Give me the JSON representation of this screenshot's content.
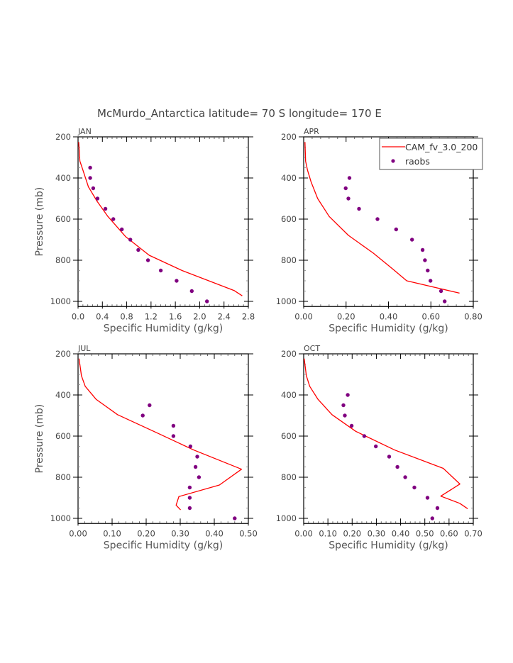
{
  "chart_data": {
    "title": "McMurdo_Antarctica  latitude= 70 S longitude= 170 E",
    "legend": {
      "entries": [
        {
          "label": "CAM_fv_3.0_200",
          "style": "line",
          "color": "#ff0000"
        },
        {
          "label": "raobs",
          "style": "marker",
          "color": "#800080"
        }
      ],
      "placement": "top-right of APR panel"
    },
    "colors": {
      "model": "#ff0000",
      "obs": "#800080",
      "axis": "#000000"
    },
    "panels": [
      {
        "type": "line",
        "label": "JAN",
        "xlabel": "Specific Humidity (g/kg)",
        "ylabel": "Pressure (mb)",
        "xlim": [
          0,
          2.8
        ],
        "ylim": [
          200,
          1025
        ],
        "y_inverted": false,
        "xticks": [
          "0.0",
          "0.4",
          "0.8",
          "1.2",
          "1.6",
          "2.0",
          "2.4",
          "2.8"
        ],
        "xtick_values": [
          0,
          0.4,
          0.8,
          1.2,
          1.6,
          2.0,
          2.4,
          2.8
        ],
        "yticks": [
          "200",
          "400",
          "600",
          "800",
          "1000"
        ],
        "ytick_values": [
          200,
          400,
          600,
          800,
          1000
        ],
        "model": {
          "name": "CAM_fv_3.0_200",
          "q": [
            0.01,
            0.03,
            0.08,
            0.17,
            0.31,
            0.49,
            0.78,
            1.17,
            1.71,
            2.57,
            2.7
          ],
          "p": [
            225,
            318,
            362,
            443,
            512,
            587,
            685,
            776,
            850,
            948,
            973
          ]
        },
        "obs": {
          "name": "raobs",
          "q": [
            0.2,
            0.2,
            0.25,
            0.32,
            0.45,
            0.58,
            0.72,
            0.86,
            0.99,
            1.15,
            1.36,
            1.62,
            1.87,
            2.12
          ],
          "p": [
            350,
            400,
            450,
            500,
            550,
            600,
            650,
            700,
            750,
            800,
            850,
            900,
            950,
            1000
          ]
        }
      },
      {
        "type": "line",
        "label": "APR",
        "xlabel": "Specific Humidity (g/kg)",
        "ylabel": "",
        "xlim": [
          0,
          0.8
        ],
        "ylim": [
          200,
          1025
        ],
        "xticks": [
          "0.00",
          "0.20",
          "0.40",
          "0.60",
          "0.80"
        ],
        "xtick_values": [
          0,
          0.2,
          0.4,
          0.6,
          0.8
        ],
        "yticks": [
          "200",
          "400",
          "600",
          "800",
          "1000"
        ],
        "ytick_values": [
          200,
          400,
          600,
          800,
          1000
        ],
        "model": {
          "name": "CAM_fv_3.0_200",
          "q": [
            0.006,
            0.009,
            0.018,
            0.035,
            0.066,
            0.12,
            0.211,
            0.328,
            0.417,
            0.486,
            0.735
          ],
          "p": [
            225,
            318,
            362,
            420,
            500,
            587,
            679,
            765,
            840,
            900,
            960
          ]
        },
        "obs": {
          "name": "raobs",
          "q": [
            0.216,
            0.198,
            0.211,
            0.261,
            0.348,
            0.436,
            0.511,
            0.561,
            0.572,
            0.585,
            0.598,
            0.648,
            0.665
          ],
          "p": [
            400,
            450,
            500,
            550,
            600,
            650,
            700,
            750,
            800,
            850,
            900,
            950,
            1000
          ]
        }
      },
      {
        "type": "line",
        "label": "JUL",
        "xlabel": "Specific Humidity (g/kg)",
        "ylabel": "Pressure (mb)",
        "xlim": [
          0,
          0.5
        ],
        "ylim": [
          200,
          1025
        ],
        "xticks": [
          "0.00",
          "0.10",
          "0.20",
          "0.30",
          "0.40",
          "0.50"
        ],
        "xtick_values": [
          0,
          0.1,
          0.2,
          0.3,
          0.4,
          0.5
        ],
        "yticks": [
          "200",
          "400",
          "600",
          "800",
          "1000"
        ],
        "ytick_values": [
          200,
          400,
          600,
          800,
          1000
        ],
        "model": {
          "name": "CAM_fv_3.0_200",
          "q": [
            0.003,
            0.01,
            0.021,
            0.053,
            0.116,
            0.229,
            0.34,
            0.48,
            0.415,
            0.296,
            0.288,
            0.301
          ],
          "p": [
            223,
            307,
            358,
            421,
            496,
            582,
            668,
            761,
            838,
            894,
            936,
            959
          ]
        },
        "obs": {
          "name": "raobs",
          "q": [
            0.21,
            0.19,
            0.28,
            0.28,
            0.33,
            0.35,
            0.345,
            0.355,
            0.328,
            0.328,
            0.328,
            0.46
          ],
          "p": [
            450,
            500,
            550,
            600,
            650,
            700,
            750,
            800,
            850,
            900,
            950,
            1000
          ]
        }
      },
      {
        "type": "line",
        "label": "OCT",
        "xlabel": "Specific Humidity (g/kg)",
        "ylabel": "",
        "xlim": [
          0,
          0.7
        ],
        "ylim": [
          200,
          1025
        ],
        "xticks": [
          "0.00",
          "0.10",
          "0.20",
          "0.30",
          "0.40",
          "0.50",
          "0.60",
          "0.70"
        ],
        "xtick_values": [
          0,
          0.1,
          0.2,
          0.3,
          0.4,
          0.5,
          0.6,
          0.7
        ],
        "yticks": [
          "200",
          "400",
          "600",
          "800",
          "1000"
        ],
        "ytick_values": [
          200,
          400,
          600,
          800,
          1000
        ],
        "model": {
          "name": "CAM_fv_3.0_200",
          "q": [
            0.002,
            0.011,
            0.025,
            0.059,
            0.117,
            0.215,
            0.376,
            0.576,
            0.645,
            0.566,
            0.644,
            0.677
          ],
          "p": [
            223,
            307,
            358,
            421,
            496,
            577,
            668,
            757,
            833,
            892,
            927,
            953
          ]
        },
        "obs": {
          "name": "raobs",
          "q": [
            0.182,
            0.164,
            0.17,
            0.198,
            0.25,
            0.298,
            0.353,
            0.387,
            0.419,
            0.457,
            0.511,
            0.552,
            0.531
          ],
          "p": [
            400,
            450,
            500,
            550,
            600,
            650,
            700,
            750,
            800,
            850,
            900,
            950,
            1000
          ]
        }
      }
    ]
  }
}
